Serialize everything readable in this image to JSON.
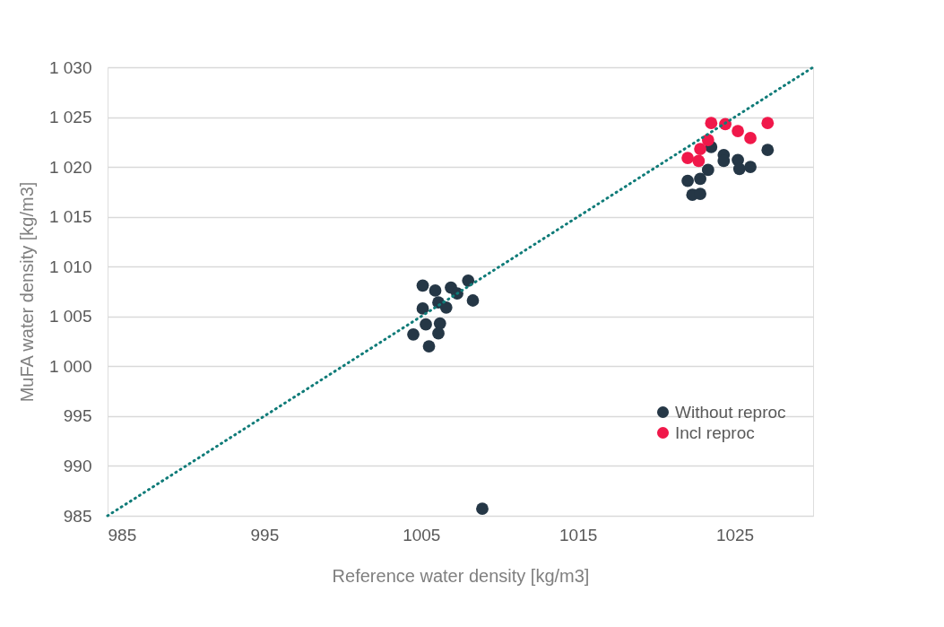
{
  "chart_data": {
    "type": "scatter",
    "xlabel": "Reference water density [kg/m3]",
    "ylabel": "MuFA water density [kg/m3]",
    "xlim": [
      985,
      1030
    ],
    "xticks": [
      985,
      995,
      1005,
      1015,
      1025
    ],
    "ylim": [
      985,
      1030
    ],
    "yticks": [
      {
        "value": 985,
        "label": "985"
      },
      {
        "value": 990,
        "label": "990"
      },
      {
        "value": 995,
        "label": "995"
      },
      {
        "value": 1000,
        "label": "1 000"
      },
      {
        "value": 1005,
        "label": "1 005"
      },
      {
        "value": 1010,
        "label": "1 010"
      },
      {
        "value": 1015,
        "label": "1 015"
      },
      {
        "value": 1020,
        "label": "1 020"
      },
      {
        "value": 1025,
        "label": "1 025"
      },
      {
        "value": 1030,
        "label": "1 030"
      }
    ],
    "grid": "y",
    "legend": "bottom right",
    "marker": "circle",
    "series": [
      {
        "name": "Without reproc",
        "color": "#253746",
        "x": [
          1005.1,
          1005.9,
          1006.9,
          1007.3,
          1008.0,
          1008.3,
          1005.1,
          1006.1,
          1006.6,
          1005.3,
          1006.2,
          1004.5,
          1006.1,
          1005.5,
          1008.9,
          1023.5,
          1024.3,
          1024.3,
          1025.2,
          1025.3,
          1026.0,
          1027.1,
          1023.3,
          1022.0,
          1022.8,
          1022.3,
          1022.8
        ],
        "values": [
          1008.1,
          1007.6,
          1007.9,
          1007.3,
          1008.6,
          1006.6,
          1005.8,
          1006.4,
          1005.9,
          1004.2,
          1004.3,
          1003.2,
          1003.3,
          1002.0,
          985.7,
          1022.0,
          1021.2,
          1020.6,
          1020.7,
          1019.8,
          1020.0,
          1021.7,
          1019.7,
          1018.6,
          1018.8,
          1017.2,
          1017.3
        ]
      },
      {
        "name": "Incl reproc",
        "color": "#f0184a",
        "x": [
          1023.5,
          1024.4,
          1025.2,
          1026.0,
          1027.1,
          1023.3,
          1022.8,
          1022.0,
          1022.4,
          1022.7
        ],
        "values": [
          1024.4,
          1024.3,
          1023.6,
          1022.9,
          1024.4,
          1022.7,
          1021.8,
          1020.9,
          null,
          1020.6
        ]
      },
      {
        "type": "line",
        "color": "#0f7b78",
        "line_style": "dotted",
        "marker": "none",
        "x": [
          985,
          1030
        ],
        "values": [
          985,
          1030
        ]
      }
    ]
  }
}
